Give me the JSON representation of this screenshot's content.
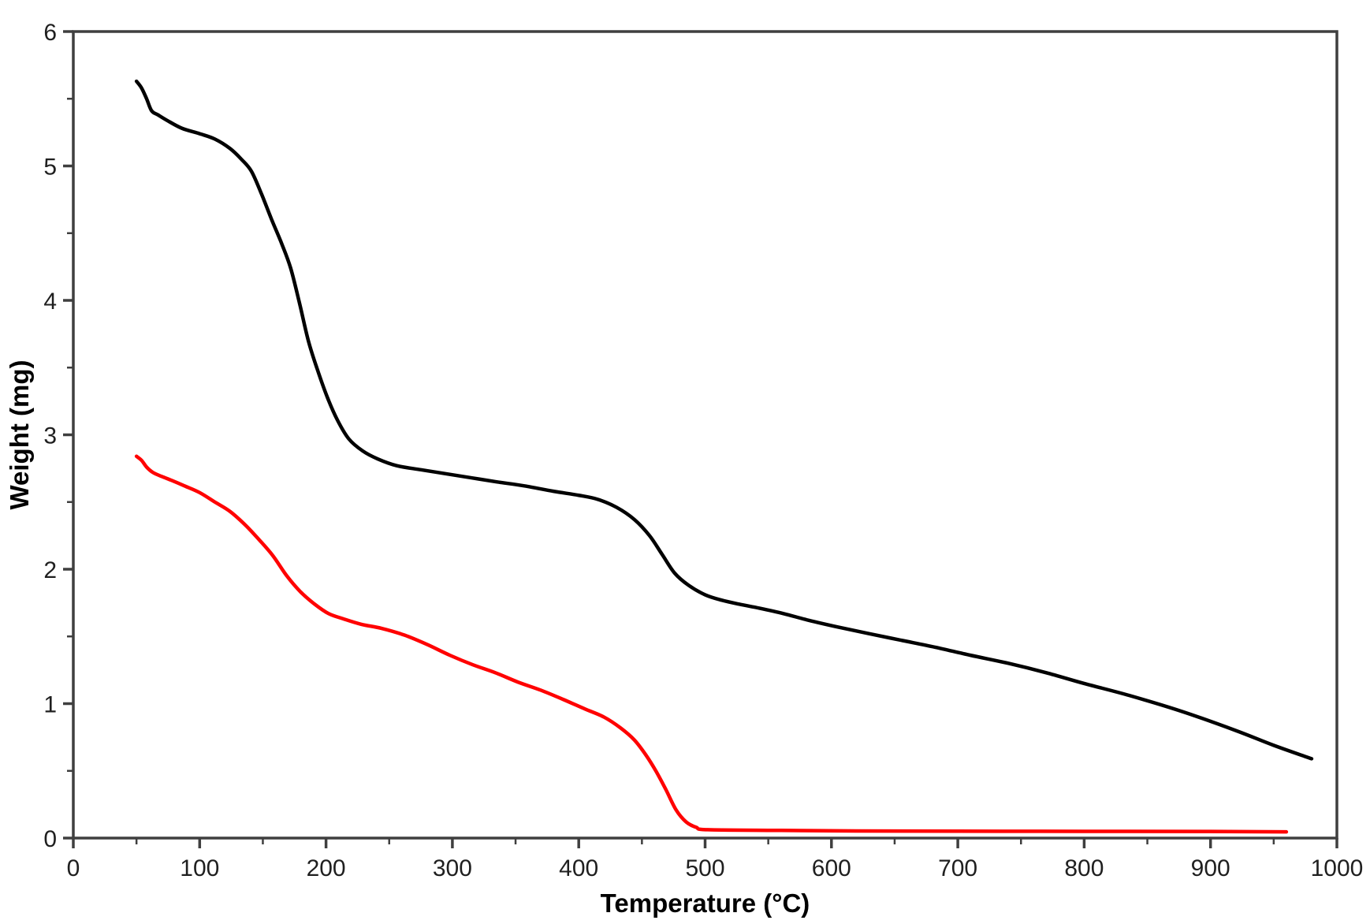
{
  "page": {
    "background_color": "#ffffff"
  },
  "chart_data": {
    "type": "line",
    "title": "",
    "xlabel": "Temperature (°C)",
    "ylabel": "Weight (mg)",
    "xlim": [
      0,
      1000
    ],
    "ylim": [
      0,
      6
    ],
    "x_major_ticks": [
      0,
      100,
      200,
      300,
      400,
      500,
      600,
      700,
      800,
      900,
      1000
    ],
    "x_minor_tick_step": 50,
    "y_major_ticks": [
      0,
      1,
      2,
      3,
      4,
      5,
      6
    ],
    "y_minor_tick_step": 0.5,
    "grid": false,
    "legend": "none",
    "colors": {
      "axis": "#3f3f3f",
      "tick_label": "#1f1f1f",
      "black_series": "#000000",
      "red_series": "#ff0000"
    },
    "series": [
      {
        "name": "black",
        "color": "#000000",
        "stroke_width": 4.5,
        "points": [
          [
            50,
            5.63
          ],
          [
            54,
            5.58
          ],
          [
            58,
            5.5
          ],
          [
            62,
            5.41
          ],
          [
            67,
            5.38
          ],
          [
            74,
            5.34
          ],
          [
            86,
            5.28
          ],
          [
            100,
            5.24
          ],
          [
            112,
            5.2
          ],
          [
            124,
            5.13
          ],
          [
            133,
            5.05
          ],
          [
            141,
            4.96
          ],
          [
            149,
            4.79
          ],
          [
            157,
            4.6
          ],
          [
            165,
            4.42
          ],
          [
            172,
            4.24
          ],
          [
            179,
            3.98
          ],
          [
            186,
            3.7
          ],
          [
            193,
            3.49
          ],
          [
            201,
            3.28
          ],
          [
            209,
            3.11
          ],
          [
            218,
            2.97
          ],
          [
            229,
            2.88
          ],
          [
            241,
            2.82
          ],
          [
            256,
            2.77
          ],
          [
            275,
            2.74
          ],
          [
            295,
            2.71
          ],
          [
            315,
            2.68
          ],
          [
            335,
            2.65
          ],
          [
            357,
            2.62
          ],
          [
            380,
            2.58
          ],
          [
            400,
            2.55
          ],
          [
            415,
            2.52
          ],
          [
            430,
            2.46
          ],
          [
            444,
            2.37
          ],
          [
            456,
            2.25
          ],
          [
            466,
            2.11
          ],
          [
            476,
            1.97
          ],
          [
            487,
            1.88
          ],
          [
            500,
            1.81
          ],
          [
            513,
            1.77
          ],
          [
            527,
            1.74
          ],
          [
            543,
            1.71
          ],
          [
            562,
            1.67
          ],
          [
            582,
            1.62
          ],
          [
            605,
            1.57
          ],
          [
            630,
            1.52
          ],
          [
            656,
            1.47
          ],
          [
            682,
            1.42
          ],
          [
            710,
            1.36
          ],
          [
            740,
            1.3
          ],
          [
            770,
            1.23
          ],
          [
            800,
            1.15
          ],
          [
            836,
            1.06
          ],
          [
            878,
            0.94
          ],
          [
            920,
            0.8
          ],
          [
            950,
            0.69
          ],
          [
            980,
            0.59
          ]
        ]
      },
      {
        "name": "red",
        "color": "#ff0000",
        "stroke_width": 4.5,
        "points": [
          [
            50,
            2.84
          ],
          [
            54,
            2.81
          ],
          [
            58,
            2.76
          ],
          [
            63,
            2.72
          ],
          [
            70,
            2.69
          ],
          [
            78,
            2.66
          ],
          [
            88,
            2.62
          ],
          [
            100,
            2.57
          ],
          [
            112,
            2.5
          ],
          [
            124,
            2.43
          ],
          [
            136,
            2.33
          ],
          [
            147,
            2.22
          ],
          [
            158,
            2.1
          ],
          [
            169,
            1.95
          ],
          [
            180,
            1.83
          ],
          [
            191,
            1.74
          ],
          [
            202,
            1.67
          ],
          [
            214,
            1.63
          ],
          [
            228,
            1.59
          ],
          [
            244,
            1.56
          ],
          [
            262,
            1.51
          ],
          [
            280,
            1.44
          ],
          [
            298,
            1.36
          ],
          [
            316,
            1.29
          ],
          [
            334,
            1.23
          ],
          [
            352,
            1.16
          ],
          [
            370,
            1.1
          ],
          [
            388,
            1.03
          ],
          [
            405,
            0.96
          ],
          [
            420,
            0.9
          ],
          [
            433,
            0.82
          ],
          [
            444,
            0.73
          ],
          [
            453,
            0.62
          ],
          [
            461,
            0.5
          ],
          [
            469,
            0.36
          ],
          [
            477,
            0.21
          ],
          [
            485,
            0.12
          ],
          [
            493,
            0.08
          ],
          [
            502,
            0.062
          ],
          [
            560,
            0.057
          ],
          [
            620,
            0.053
          ],
          [
            700,
            0.051
          ],
          [
            800,
            0.05
          ],
          [
            900,
            0.049
          ],
          [
            960,
            0.046
          ]
        ]
      }
    ]
  }
}
